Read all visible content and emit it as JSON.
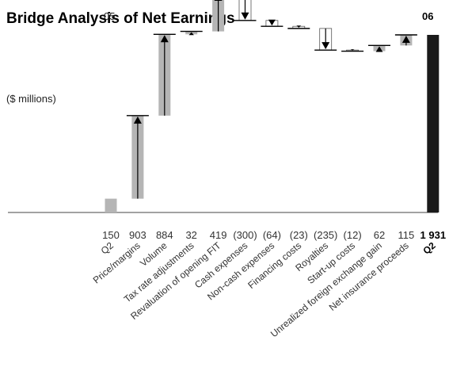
{
  "chart_data": {
    "type": "bar",
    "subtype": "waterfall",
    "title": "Bridge Analysis of Net Earnings",
    "subtitle": "($ millions)",
    "period_start_label": "05",
    "period_end_label": "06",
    "categories": [
      "Q2",
      "Price/margins",
      "Volume",
      "Tax rate adjustments",
      "Revaluation of opening FIT",
      "Cash expenses",
      "Non-cash expenses",
      "Financing costs",
      "Royalties",
      "Start-up costs",
      "Unrealized foreign exchange gain",
      "Net insurance proceeds",
      "Q2"
    ],
    "value_labels": [
      "150",
      "903",
      "884",
      "32",
      "419",
      "(300)",
      "(64)",
      "(23)",
      "(235)",
      "(12)",
      "62",
      "115",
      "1 931"
    ],
    "values": [
      150,
      903,
      884,
      32,
      419,
      -300,
      -64,
      -23,
      -235,
      -12,
      62,
      115,
      1931
    ],
    "bar_kinds": [
      "start",
      "change",
      "change",
      "change",
      "change",
      "change",
      "change",
      "change",
      "change",
      "change",
      "change",
      "change",
      "total"
    ],
    "ylim": [
      0,
      2250
    ],
    "grid": false,
    "legend": "none",
    "colors": {
      "start_bar": "#b5b5b5",
      "increase_bar": "#b5b5b5",
      "decrease_bar": "#ffffff",
      "total_bar": "#1a1a1a",
      "connector": "#000000",
      "arrow": "#000000"
    }
  }
}
